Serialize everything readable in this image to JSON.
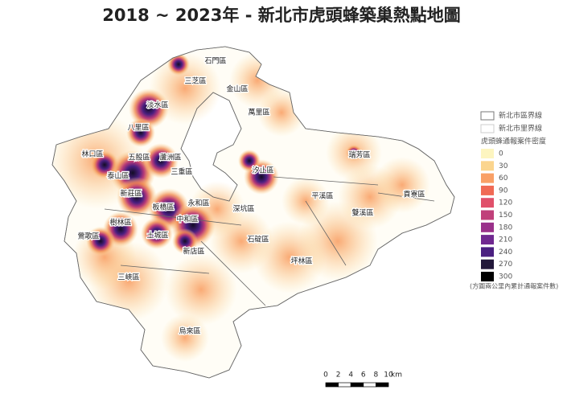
{
  "title": "2018 ~ 2023年 - 新北市虎頭蜂築巢熱點地圖",
  "districts": [
    "石門區",
    "三芝區",
    "金山區",
    "淡水區",
    "萬里區",
    "八里區",
    "林口區",
    "五股區",
    "蘆洲區",
    "泰山區",
    "三重區",
    "汐止區",
    "瑞芳區",
    "新莊區",
    "永和區",
    "板橋區",
    "平溪區",
    "貢寮區",
    "深坑區",
    "雙溪區",
    "樹林區",
    "中和區",
    "鶯歌區",
    "土城區",
    "石碇區",
    "新店區",
    "坪林區",
    "三峽區",
    "烏來區"
  ],
  "legend": {
    "boundaries": [
      {
        "label": "新北市區界線",
        "color": "#777777"
      },
      {
        "label": "新北市里界線",
        "color": "#cccccc"
      }
    ],
    "title": "虎頭蜂通報案件密度",
    "levels": [
      {
        "value": 0,
        "color": "#fdf5c0"
      },
      {
        "value": 30,
        "color": "#fbd58e"
      },
      {
        "value": 60,
        "color": "#f9a066"
      },
      {
        "value": 90,
        "color": "#f06a55"
      },
      {
        "value": 120,
        "color": "#e0506a"
      },
      {
        "value": 150,
        "color": "#c0407a"
      },
      {
        "value": 180,
        "color": "#9a308a"
      },
      {
        "value": 210,
        "color": "#702890"
      },
      {
        "value": 240,
        "color": "#4a1f80"
      },
      {
        "value": 270,
        "color": "#22183a"
      },
      {
        "value": 300,
        "color": "#000000"
      }
    ],
    "note": "(方圓兩公里內累計通報案件數)"
  },
  "scale_bar": {
    "ticks": [
      0,
      2,
      4,
      6,
      8,
      10
    ],
    "unit": "km"
  }
}
